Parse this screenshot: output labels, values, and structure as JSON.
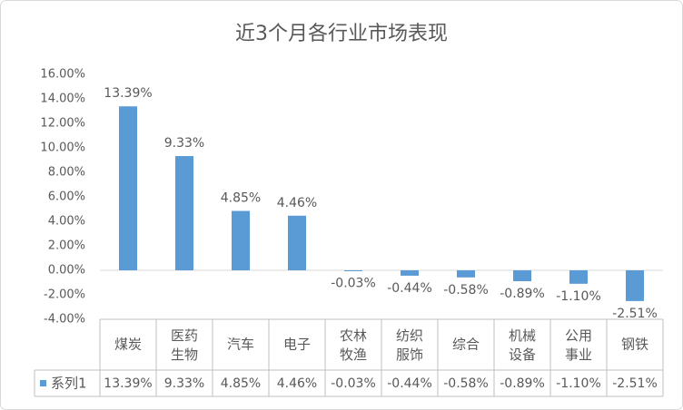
{
  "chart_data": {
    "type": "bar",
    "title": "近3个月各行业市场表现",
    "categories": [
      "煤炭",
      "医药生物",
      "汽车",
      "电子",
      "农林牧渔",
      "纺织服饰",
      "综合",
      "机械设备",
      "公用事业",
      "钢铁"
    ],
    "series": [
      {
        "name": "系列1",
        "color": "#5b9bd5",
        "values": [
          13.39,
          9.33,
          4.85,
          4.46,
          -0.03,
          -0.44,
          -0.58,
          -0.89,
          -1.1,
          -2.51
        ],
        "value_labels": [
          "13.39%",
          "9.33%",
          "4.85%",
          "4.46%",
          "-0.03%",
          "-0.44%",
          "-0.58%",
          "-0.89%",
          "-1.10%",
          "-2.51%"
        ]
      }
    ],
    "ylim": [
      -4,
      16
    ],
    "yticks": [
      {
        "value": -4,
        "label": "-4.00%"
      },
      {
        "value": -2,
        "label": "-2.00%"
      },
      {
        "value": 0,
        "label": "0.00%"
      },
      {
        "value": 2,
        "label": "2.00%"
      },
      {
        "value": 4,
        "label": "4.00%"
      },
      {
        "value": 6,
        "label": "6.00%"
      },
      {
        "value": 8,
        "label": "8.00%"
      },
      {
        "value": 10,
        "label": "10.00%"
      },
      {
        "value": 12,
        "label": "12.00%"
      },
      {
        "value": 14,
        "label": "14.00%"
      },
      {
        "value": 16,
        "label": "16.00%"
      }
    ],
    "grid": false,
    "data_table": true
  }
}
